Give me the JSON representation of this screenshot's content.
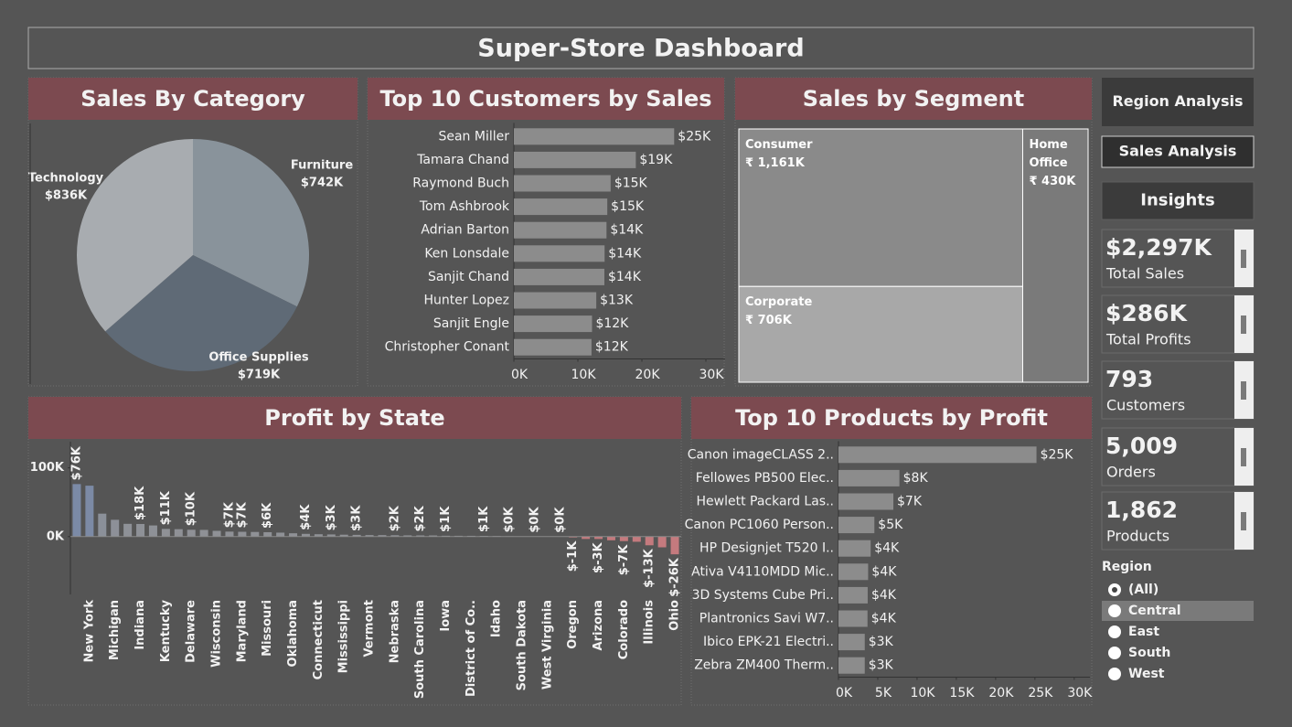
{
  "header": {
    "title": "Super-Store Dashboard"
  },
  "nav": [
    "Region Analysis",
    "Sales Analysis",
    "Insights"
  ],
  "kpis": [
    {
      "value": "$2,297K",
      "label": "Total Sales"
    },
    {
      "value": "$286K",
      "label": "Total Profits"
    },
    {
      "value": "793",
      "label": "Customers"
    },
    {
      "value": "5,009",
      "label": "Orders"
    },
    {
      "value": "1,862",
      "label": "Products"
    }
  ],
  "filter": {
    "title": "Region",
    "options": [
      "(All)",
      "Central",
      "East",
      "South",
      "West"
    ],
    "selected": "(All)",
    "highlighted": "Central"
  },
  "chart_data": [
    {
      "type": "pie",
      "title": "Sales By Category",
      "categories": [
        "Furniture",
        "Office Supplies",
        "Technology"
      ],
      "values": [
        742000,
        719000,
        836000
      ],
      "value_labels": [
        "$742K",
        "$719K",
        "$836K"
      ],
      "colors": [
        "#89939b",
        "#5f6a76",
        "#a8acb0"
      ]
    },
    {
      "type": "bar",
      "orientation": "horizontal",
      "title": "Top 10 Customers by Sales",
      "categories": [
        "Sean Miller",
        "Tamara Chand",
        "Raymond Buch",
        "Tom Ashbrook",
        "Adrian Barton",
        "Ken Lonsdale",
        "Sanjit Chand",
        "Hunter Lopez",
        "Sanjit Engle",
        "Christopher Conant"
      ],
      "values": [
        25043,
        19052,
        15117,
        14596,
        14474,
        14175,
        14142,
        12873,
        12209,
        12129
      ],
      "value_labels": [
        "$25K",
        "$19K",
        "$15K",
        "$15K",
        "$14K",
        "$14K",
        "$14K",
        "$13K",
        "$12K",
        "$12K"
      ],
      "color": "#8c8c8c",
      "xlim": [
        0,
        33000
      ],
      "xticks": [
        {
          "value": 0,
          "label": "0K"
        },
        {
          "value": 10000,
          "label": "10K"
        },
        {
          "value": 20000,
          "label": "20K"
        },
        {
          "value": 30000,
          "label": "30K"
        }
      ]
    },
    {
      "type": "treemap",
      "title": "Sales by Segment",
      "categories": [
        "Consumer",
        "Corporate",
        "Home Office"
      ],
      "values": [
        1161000,
        706000,
        430000
      ],
      "value_labels": [
        "₹ 1,161K",
        "₹ 706K",
        "₹ 430K"
      ],
      "colors": [
        "#8a8a8a",
        "#a8a8a8",
        "#7a7a7a"
      ]
    },
    {
      "type": "bar",
      "orientation": "vertical",
      "title": "Profit by State",
      "categories": [
        null,
        "New York",
        null,
        "Michigan",
        null,
        "Indiana",
        null,
        "Kentucky",
        null,
        "Delaware",
        null,
        "Wisconsin",
        null,
        "Maryland",
        null,
        "Missouri",
        null,
        "Oklahoma",
        null,
        "Connecticut",
        null,
        "Mississippi",
        null,
        "Vermont",
        null,
        "Nebraska",
        null,
        "South Carolina",
        null,
        "Iowa",
        null,
        "District of Co..",
        null,
        "Idaho",
        null,
        "South Dakota",
        null,
        "West Virginia",
        null,
        "Oregon",
        null,
        "Arizona",
        null,
        "Colorado",
        null,
        "Illinois",
        null,
        "Ohio"
      ],
      "values": [
        76381,
        74039,
        33403,
        24463,
        18598,
        18383,
        16250,
        11200,
        10823,
        9977,
        9773,
        8402,
        7286,
        7031,
        6786,
        6436,
        5787,
        4854,
        4009,
        3511,
        3173,
        2800,
        2547,
        2245,
        2196,
        2037,
        1833,
        1770,
        1707,
        1250,
        1184,
        1157,
        1060,
        836,
        454,
        394,
        230,
        185,
        100,
        -1190,
        -3399,
        -3428,
        -5342,
        -6528,
        -7491,
        -12608,
        -15560,
        -25729
      ],
      "value_labels": [
        "$76K",
        null,
        null,
        null,
        null,
        "$18K",
        null,
        "$11K",
        null,
        "$10K",
        null,
        null,
        "$7K",
        "$7K",
        null,
        "$6K",
        null,
        null,
        "$4K",
        null,
        "$3K",
        null,
        "$3K",
        null,
        null,
        "$2K",
        null,
        "$2K",
        null,
        "$1K",
        null,
        null,
        "$1K",
        null,
        "$0K",
        null,
        "$0K",
        null,
        "$0K",
        "$-1K",
        null,
        "$-3K",
        null,
        "$-7K",
        null,
        "$-13K",
        null,
        "$-26K"
      ],
      "color": "#8f9196",
      "top_color": "#7b8aa6",
      "negative_color": "#c47a7e",
      "ylim": [
        -84000,
        138000
      ],
      "yticks": [
        {
          "value": 0,
          "label": "0K"
        },
        {
          "value": 100000,
          "label": "100K"
        }
      ]
    },
    {
      "type": "bar",
      "orientation": "horizontal",
      "title": "Top 10 Products by Profit",
      "categories": [
        "Canon imageCLASS 2..",
        "Fellowes PB500 Elec..",
        "Hewlett Packard Las..",
        "Canon PC1060 Person..",
        "HP Designjet T520 I..",
        "Ativa V4110MDD Mic..",
        "3D Systems Cube Pri..",
        "Plantronics Savi W7..",
        "Ibico EPK-21 Electri..",
        "Zebra ZM400 Therm.."
      ],
      "values": [
        25200,
        7753,
        6984,
        4571,
        4095,
        3772,
        3718,
        3696,
        3345,
        3344
      ],
      "value_labels": [
        "$25K",
        "$8K",
        "$7K",
        "$5K",
        "$4K",
        "$4K",
        "$4K",
        "$4K",
        "$3K",
        "$3K"
      ],
      "color": "#8c8c8c",
      "xlim": [
        0,
        32000
      ],
      "xticks": [
        {
          "value": 0,
          "label": "0K"
        },
        {
          "value": 5000,
          "label": "5K"
        },
        {
          "value": 10000,
          "label": "10K"
        },
        {
          "value": 15000,
          "label": "15K"
        },
        {
          "value": 20000,
          "label": "20K"
        },
        {
          "value": 25000,
          "label": "25K"
        },
        {
          "value": 30000,
          "label": "30K"
        }
      ]
    }
  ]
}
